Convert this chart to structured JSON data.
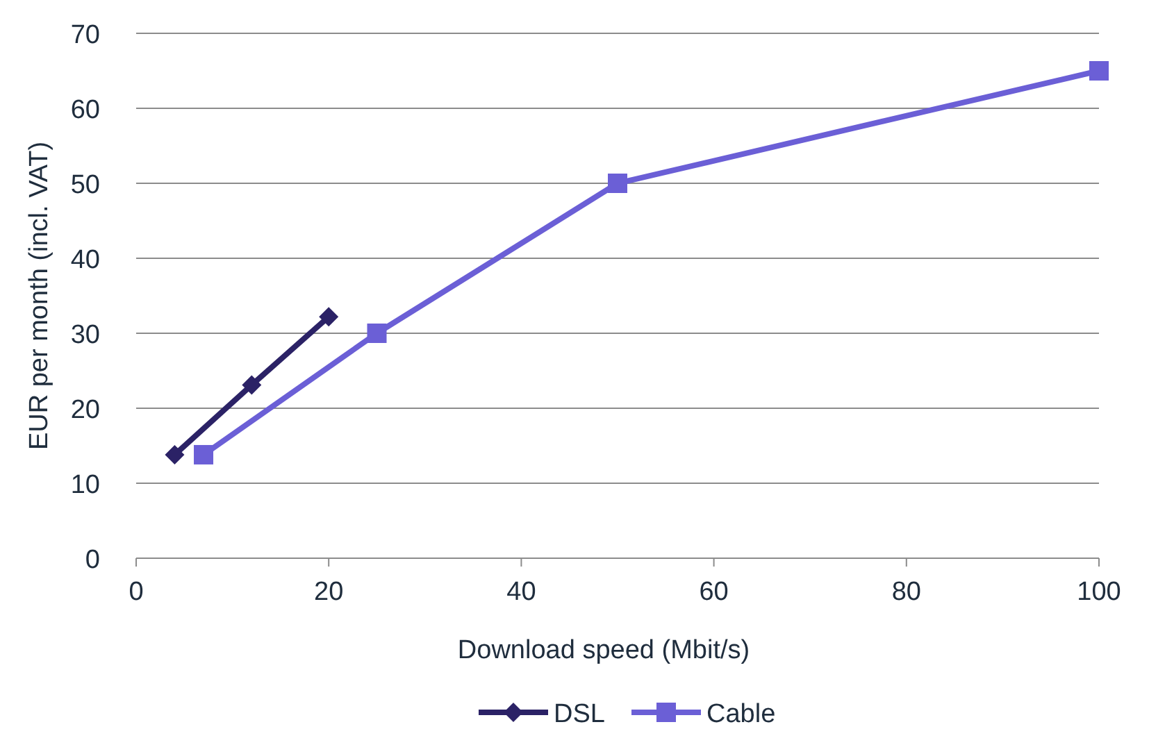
{
  "chart_data": {
    "type": "line",
    "xlabel": "Download speed (Mbit/s)",
    "ylabel": "EUR per month (incl. VAT)",
    "xlim": [
      0,
      100
    ],
    "xticks": [
      0,
      20,
      40,
      60,
      80,
      100
    ],
    "ylim": [
      0,
      70
    ],
    "yticks": [
      0,
      10,
      20,
      30,
      40,
      50,
      60,
      70
    ],
    "grid": "y",
    "legend": "bottom",
    "line_style": "solid",
    "series": [
      {
        "name": "DSL",
        "color": "#2b2266",
        "marker": "diamond",
        "x": [
          4,
          12,
          20
        ],
        "values": [
          13.8,
          23.1,
          32.2
        ]
      },
      {
        "name": "Cable",
        "color": "#6b5fd6",
        "marker": "square",
        "x": [
          7,
          25,
          50,
          100
        ],
        "values": [
          13.8,
          30,
          50,
          65
        ]
      }
    ]
  }
}
